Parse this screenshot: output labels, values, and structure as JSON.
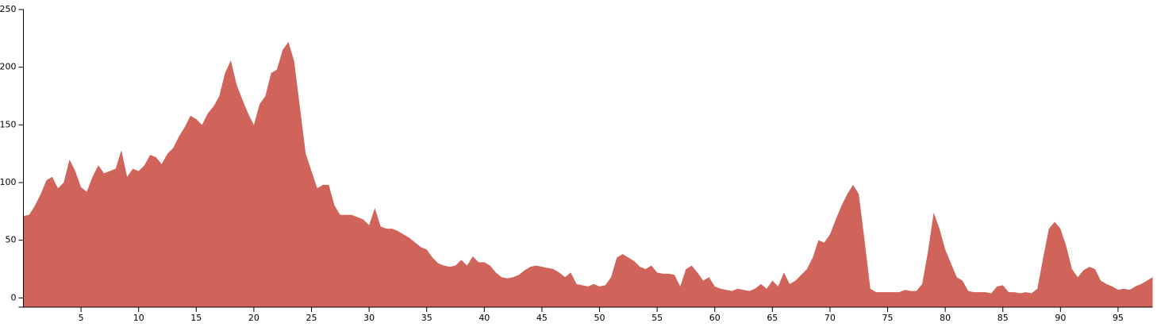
{
  "chart_data": {
    "type": "area",
    "color": "#d0645a",
    "x": [
      0,
      0.5,
      1,
      1.5,
      2,
      2.5,
      3,
      3.5,
      4,
      4.5,
      5,
      5.5,
      6,
      6.5,
      7,
      7.5,
      8,
      8.5,
      9,
      9.5,
      10,
      10.5,
      11,
      11.5,
      12,
      12.5,
      13,
      13.5,
      14,
      14.5,
      15,
      15.5,
      16,
      16.5,
      17,
      17.5,
      18,
      18.5,
      19,
      19.5,
      20,
      20.5,
      21,
      21.5,
      22,
      22.5,
      23,
      23.5,
      24,
      24.5,
      25,
      25.5,
      26,
      26.5,
      27,
      27.5,
      28,
      28.5,
      29,
      29.5,
      30,
      30.5,
      31,
      31.5,
      32,
      32.5,
      33,
      33.5,
      34,
      34.5,
      35,
      35.5,
      36,
      36.5,
      37,
      37.5,
      38,
      38.5,
      39,
      39.5,
      40,
      40.5,
      41,
      41.5,
      42,
      42.5,
      43,
      43.5,
      44,
      44.5,
      45,
      45.5,
      46,
      46.5,
      47,
      47.5,
      48,
      48.5,
      49,
      49.5,
      50,
      50.5,
      51,
      51.5,
      52,
      52.5,
      53,
      53.5,
      54,
      54.5,
      55,
      55.5,
      56,
      56.5,
      57,
      57.5,
      58,
      58.5,
      59,
      59.5,
      60,
      60.5,
      61,
      61.5,
      62,
      62.5,
      63,
      63.5,
      64,
      64.5,
      65,
      65.5,
      66,
      66.5,
      67,
      67.5,
      68,
      68.5,
      69,
      69.5,
      70,
      70.5,
      71,
      71.5,
      72,
      72.5,
      73,
      73.5,
      74,
      74.5,
      75,
      75.5,
      76,
      76.5,
      77,
      77.5,
      78,
      78.5,
      79,
      79.5,
      80,
      80.5,
      81,
      81.5,
      82,
      82.5,
      83,
      83.5,
      84,
      84.5,
      85,
      85.5,
      86,
      86.5,
      87,
      87.5,
      88,
      88.5,
      89,
      89.5,
      90,
      90.5,
      91,
      91.5,
      92,
      92.5,
      93,
      93.5,
      94,
      94.5,
      95,
      95.5,
      96,
      96.5,
      97,
      97.5,
      98
    ],
    "values": [
      71,
      72,
      80,
      90,
      102,
      105,
      95,
      100,
      120,
      110,
      96,
      92,
      105,
      115,
      108,
      110,
      112,
      128,
      105,
      112,
      110,
      115,
      124,
      122,
      116,
      125,
      130,
      140,
      148,
      158,
      155,
      150,
      160,
      166,
      175,
      195,
      206,
      185,
      172,
      160,
      150,
      168,
      175,
      195,
      198,
      215,
      222,
      205,
      165,
      125,
      110,
      95,
      98,
      98,
      80,
      72,
      72,
      72,
      70,
      68,
      63,
      78,
      62,
      60,
      60,
      58,
      55,
      52,
      48,
      44,
      42,
      35,
      30,
      28,
      27,
      28,
      33,
      28,
      36,
      31,
      31,
      28,
      22,
      18,
      17,
      18,
      20,
      24,
      27,
      28,
      27,
      26,
      25,
      22,
      18,
      22,
      12,
      11,
      10,
      12,
      10,
      11,
      18,
      35,
      38,
      35,
      32,
      27,
      25,
      28,
      22,
      21,
      21,
      20,
      10,
      25,
      28,
      22,
      15,
      18,
      10,
      8,
      7,
      6,
      8,
      7,
      6,
      8,
      12,
      8,
      15,
      10,
      22,
      12,
      15,
      20,
      25,
      35,
      50,
      48,
      55,
      68,
      80,
      90,
      98,
      90,
      50,
      8,
      5,
      5,
      5,
      5,
      5,
      7,
      6,
      6,
      12,
      40,
      74,
      60,
      42,
      30,
      18,
      15,
      6,
      5,
      5,
      5,
      4,
      10,
      11,
      5,
      5,
      4,
      5,
      4,
      8,
      35,
      60,
      66,
      60,
      45,
      25,
      18,
      24,
      27,
      25,
      15,
      12,
      10,
      7,
      8,
      7,
      10,
      12,
      15,
      18
    ],
    "xlim": [
      0,
      98
    ],
    "ylim": [
      -8,
      250
    ],
    "xticks": [
      5,
      10,
      15,
      20,
      25,
      30,
      35,
      40,
      45,
      50,
      55,
      60,
      65,
      70,
      75,
      80,
      85,
      90,
      95
    ],
    "yticks": [
      0,
      50,
      100,
      150,
      200,
      250
    ]
  }
}
